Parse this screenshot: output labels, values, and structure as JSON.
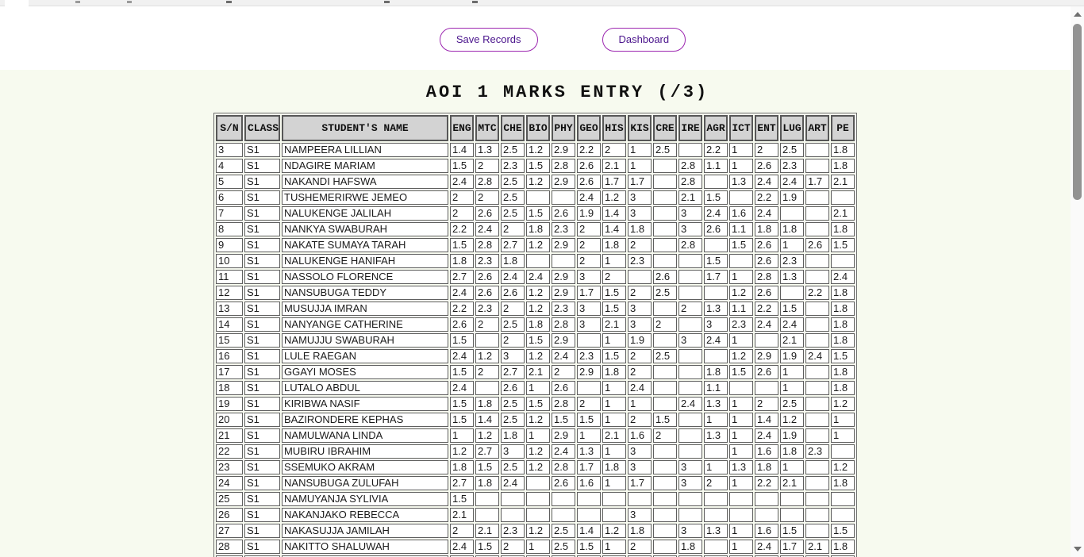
{
  "toolbar": {
    "save_label": "Save Records",
    "dashboard_label": "Dashboard"
  },
  "page": {
    "title": "AOI 1 MARKS ENTRY (/3)"
  },
  "table": {
    "headers": [
      "S/N",
      "CLASS",
      "STUDENT'S NAME",
      "ENG",
      "MTC",
      "CHE",
      "BIO",
      "PHY",
      "GEO",
      "HIS",
      "KIS",
      "CRE",
      "IRE",
      "AGR",
      "ICT",
      "ENT",
      "LUG",
      "ART",
      "PE"
    ],
    "rows": [
      {
        "sn": "3",
        "class": "S1",
        "name": "NAMPEERA LILLIAN",
        "marks": [
          "1.4",
          "1.3",
          "2.5",
          "1.2",
          "2.9",
          "2.2",
          "2",
          "1",
          "2.5",
          "",
          "2.2",
          "1",
          "2",
          "2.5",
          "",
          "1.8"
        ]
      },
      {
        "sn": "4",
        "class": "S1",
        "name": "NDAGIRE MARIAM",
        "marks": [
          "1.5",
          "2",
          "2.3",
          "1.5",
          "2.8",
          "2.6",
          "2.1",
          "1",
          "",
          "2.8",
          "1.1",
          "1",
          "2.6",
          "2.3",
          "",
          "1.8"
        ]
      },
      {
        "sn": "5",
        "class": "S1",
        "name": "NAKANDI HAFSWA",
        "marks": [
          "2.4",
          "2.8",
          "2.5",
          "1.2",
          "2.9",
          "2.6",
          "1.7",
          "1.7",
          "",
          "2.8",
          "",
          "1.3",
          "2.4",
          "2.4",
          "1.7",
          "2.1"
        ]
      },
      {
        "sn": "6",
        "class": "S1",
        "name": "TUSHEMERIRWE JEMEO",
        "marks": [
          "2",
          "2",
          "2.5",
          "",
          "",
          "2.4",
          "1.2",
          "3",
          "",
          "2.1",
          "1.5",
          "",
          "2.2",
          "1.9",
          "",
          ""
        ]
      },
      {
        "sn": "7",
        "class": "S1",
        "name": "NALUKENGE JALILAH",
        "marks": [
          "2",
          "2.6",
          "2.5",
          "1.5",
          "2.6",
          "1.9",
          "1.4",
          "3",
          "",
          "3",
          "2.4",
          "1.6",
          "2.4",
          "",
          "",
          "2.1"
        ]
      },
      {
        "sn": "8",
        "class": "S1",
        "name": "NANKYA SWABURAH",
        "marks": [
          "2.2",
          "2.4",
          "2",
          "1.8",
          "2.3",
          "2",
          "1.4",
          "1.8",
          "",
          "3",
          "2.6",
          "1.1",
          "1.8",
          "1.8",
          "",
          "1.8"
        ]
      },
      {
        "sn": "9",
        "class": "S1",
        "name": "NAKATE SUMAYA TARAH",
        "marks": [
          "1.5",
          "2.8",
          "2.7",
          "1.2",
          "2.9",
          "2",
          "1.8",
          "2",
          "",
          "2.8",
          "",
          "1.5",
          "2.6",
          "1",
          "2.6",
          "1.5"
        ]
      },
      {
        "sn": "10",
        "class": "S1",
        "name": "NALUKENGE HANIFAH",
        "marks": [
          "1.8",
          "2.3",
          "1.8",
          "",
          "",
          "2",
          "1",
          "2.3",
          "",
          "",
          "1.5",
          "",
          "2.6",
          "2.3",
          "",
          ""
        ]
      },
      {
        "sn": "11",
        "class": "S1",
        "name": "NASSOLO FLORENCE",
        "marks": [
          "2.7",
          "2.6",
          "2.4",
          "2.4",
          "2.9",
          "3",
          "2",
          "",
          "2.6",
          "",
          "1.7",
          "1",
          "2.8",
          "1.3",
          "",
          "2.4"
        ]
      },
      {
        "sn": "12",
        "class": "S1",
        "name": "NANSUBUGA TEDDY",
        "marks": [
          "2.4",
          "2.6",
          "2.6",
          "1.2",
          "2.9",
          "1.7",
          "1.5",
          "2",
          "2.5",
          "",
          "",
          "1.2",
          "2.6",
          "",
          "2.2",
          "1.8"
        ]
      },
      {
        "sn": "13",
        "class": "S1",
        "name": "MUSUJJA IMRAN",
        "marks": [
          "2.2",
          "2.3",
          "2",
          "1.2",
          "2.3",
          "3",
          "1.5",
          "3",
          "",
          "2",
          "1.3",
          "1.1",
          "2.2",
          "1.5",
          "",
          "1.8"
        ]
      },
      {
        "sn": "14",
        "class": "S1",
        "name": "NANYANGE CATHERINE",
        "marks": [
          "2.6",
          "2",
          "2.5",
          "1.8",
          "2.8",
          "3",
          "2.1",
          "3",
          "2",
          "",
          "3",
          "2.3",
          "2.4",
          "2.4",
          "",
          "1.8"
        ]
      },
      {
        "sn": "15",
        "class": "S1",
        "name": "NAMUJJU SWABURAH",
        "marks": [
          "1.5",
          "",
          "2",
          "1.5",
          "2.9",
          "",
          "1",
          "1.9",
          "",
          "3",
          "2.4",
          "1",
          "",
          "2.1",
          "",
          "1.8"
        ]
      },
      {
        "sn": "16",
        "class": "S1",
        "name": "LULE RAEGAN",
        "marks": [
          "2.4",
          "1.2",
          "3",
          "1.2",
          "2.4",
          "2.3",
          "1.5",
          "2",
          "2.5",
          "",
          "",
          "1.2",
          "2.9",
          "1.9",
          "2.4",
          "1.5"
        ]
      },
      {
        "sn": "17",
        "class": "S1",
        "name": "GGAYI MOSES",
        "marks": [
          "1.5",
          "2",
          "2.7",
          "2.1",
          "2",
          "2.9",
          "1.8",
          "2",
          "",
          "",
          "1.8",
          "1.5",
          "2.6",
          "1",
          "",
          "1.8"
        ]
      },
      {
        "sn": "18",
        "class": "S1",
        "name": "LUTALO ABDUL",
        "marks": [
          "2.4",
          "",
          "2.6",
          "1",
          "2.6",
          "",
          "1",
          "2.4",
          "",
          "",
          "1.1",
          "",
          "",
          "1",
          "",
          "1.8"
        ]
      },
      {
        "sn": "19",
        "class": "S1",
        "name": "KIRIBWA NASIF",
        "marks": [
          "1.5",
          "1.8",
          "2.5",
          "1.5",
          "2.8",
          "2",
          "1",
          "1",
          "",
          "2.4",
          "1.3",
          "1",
          "2",
          "2.5",
          "",
          "1.2"
        ]
      },
      {
        "sn": "20",
        "class": "S1",
        "name": "BAZIRONDERE KEPHAS",
        "marks": [
          "1.5",
          "1.4",
          "2.5",
          "1.2",
          "1.5",
          "1.5",
          "1",
          "2",
          "1.5",
          "",
          "1",
          "1",
          "1.4",
          "1.2",
          "",
          "1"
        ]
      },
      {
        "sn": "21",
        "class": "S1",
        "name": "NAMULWANA LINDA",
        "marks": [
          "1",
          "1.2",
          "1.8",
          "1",
          "2.9",
          "1",
          "2.1",
          "1.6",
          "2",
          "",
          "1.3",
          "1",
          "2.4",
          "1.9",
          "",
          "1"
        ]
      },
      {
        "sn": "22",
        "class": "S1",
        "name": "MUBIRU IBRAHIM",
        "marks": [
          "1.2",
          "2.7",
          "3",
          "1.2",
          "2.4",
          "1.3",
          "1",
          "3",
          "",
          "",
          "",
          "1",
          "1.6",
          "1.8",
          "2.3",
          ""
        ]
      },
      {
        "sn": "23",
        "class": "S1",
        "name": "SSEMUKO AKRAM",
        "marks": [
          "1.8",
          "1.5",
          "2.5",
          "1.2",
          "2.8",
          "1.7",
          "1.8",
          "3",
          "",
          "3",
          "1",
          "1.3",
          "1.8",
          "1",
          "",
          "1.2"
        ]
      },
      {
        "sn": "24",
        "class": "S1",
        "name": "NANSUBUGA ZULUFAH",
        "marks": [
          "2.7",
          "1.8",
          "2.4",
          "",
          "2.6",
          "1.6",
          "1",
          "1.7",
          "",
          "3",
          "2",
          "1",
          "2.2",
          "2.1",
          "",
          "1.8"
        ]
      },
      {
        "sn": "25",
        "class": "S1",
        "name": "NAMUYANJA SYLIVIA",
        "marks": [
          "1.5",
          "",
          "",
          "",
          "",
          "",
          "",
          "",
          "",
          "",
          "",
          "",
          "",
          "",
          "",
          ""
        ]
      },
      {
        "sn": "26",
        "class": "S1",
        "name": "NAKANJAKO REBECCA",
        "marks": [
          "2.1",
          "",
          "",
          "",
          "",
          "",
          "",
          "3",
          "",
          "",
          "",
          "",
          "",
          "",
          "",
          ""
        ]
      },
      {
        "sn": "27",
        "class": "S1",
        "name": "NAKASUJJA JAMILAH",
        "marks": [
          "2",
          "2.1",
          "2.3",
          "1.2",
          "2.5",
          "1.4",
          "1.2",
          "1.8",
          "",
          "3",
          "1.3",
          "1",
          "1.6",
          "1.5",
          "",
          "1.5"
        ]
      },
      {
        "sn": "28",
        "class": "S1",
        "name": "NAKITTO SHALUWAH",
        "marks": [
          "2.4",
          "1.5",
          "2",
          "1",
          "2.5",
          "1.5",
          "1",
          "2",
          "",
          "1.8",
          "",
          "1",
          "2.4",
          "1.7",
          "2.1",
          "1.8"
        ]
      }
    ]
  },
  "colors": {
    "accent_purple": "#9c27b0",
    "accent_text": "#4a148c",
    "page_background": "#f7faef",
    "header_cell_background": "#d3d3d3"
  }
}
